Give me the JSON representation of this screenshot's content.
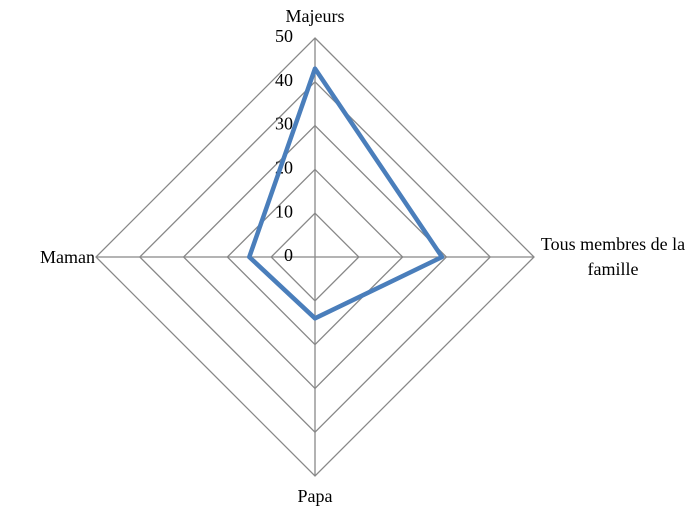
{
  "chart_data": {
    "type": "radar",
    "categories": [
      "Majeurs",
      "Tous membres de la famille",
      "Papa",
      "Maman"
    ],
    "series": [
      {
        "color": "#4a7ebb",
        "values": [
          43,
          29,
          14,
          15
        ]
      }
    ],
    "ylim": [
      0,
      50
    ],
    "yticks": [
      0,
      10,
      20,
      30,
      40,
      50
    ],
    "grid": true
  }
}
